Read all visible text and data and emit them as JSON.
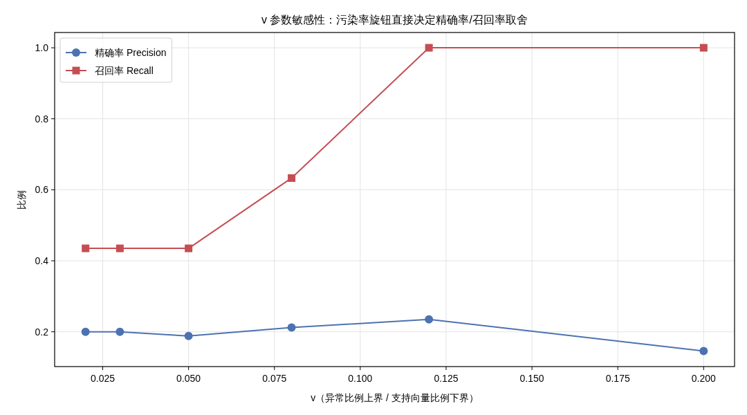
{
  "chart_data": {
    "type": "line",
    "title": "v 参数敏感性：污染率旋钮直接决定精确率/召回率取舍",
    "xlabel": "v（异常比例上界 / 支持向量比例下界）",
    "ylabel": "比例",
    "x": [
      0.02,
      0.03,
      0.05,
      0.08,
      0.12,
      0.2
    ],
    "series": [
      {
        "name": "精确率 Precision",
        "color": "#4c72b0",
        "marker": "circle",
        "values": [
          0.2,
          0.2,
          0.188,
          0.212,
          0.235,
          0.146
        ]
      },
      {
        "name": "召回率 Recall",
        "color": "#c44e52",
        "marker": "square",
        "values": [
          0.435,
          0.435,
          0.435,
          0.633,
          1.0,
          1.0
        ]
      }
    ],
    "xlim": [
      0.011,
      0.209
    ],
    "ylim": [
      0.102,
      1.043
    ],
    "xticks": [
      0.025,
      {
        "value": 0.05,
        "label": "0.050"
      },
      0.075,
      {
        "value": 0.1,
        "label": "0.100"
      },
      0.125,
      {
        "value": 0.15,
        "label": "0.150"
      },
      0.175,
      {
        "value": 0.2,
        "label": "0.200"
      }
    ],
    "yticks": [
      0.2,
      0.4,
      0.6,
      0.8,
      {
        "value": 1.0,
        "label": "1.0"
      }
    ],
    "grid": true,
    "legend": "top left"
  }
}
